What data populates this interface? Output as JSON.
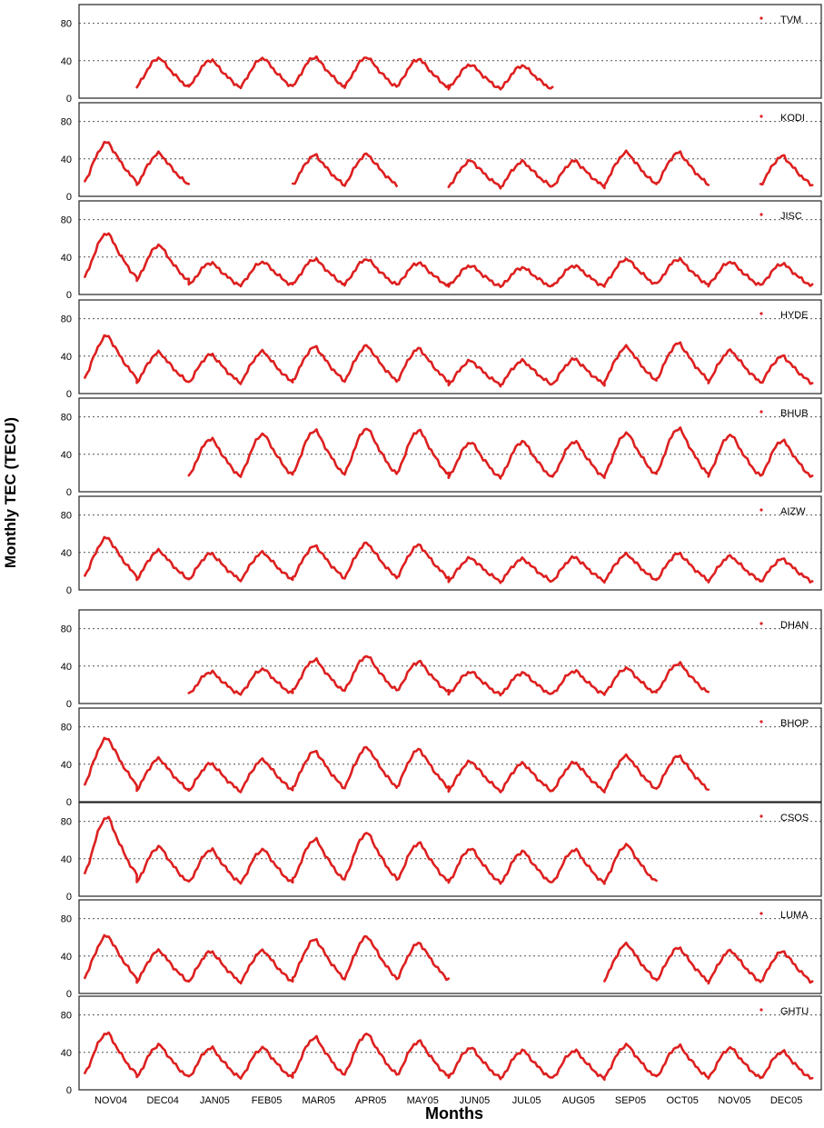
{
  "chart_data": {
    "type": "line",
    "ylabel": "Monthly TEC (TECU)",
    "xlabel": "Months",
    "x_ticks": [
      "NOV04",
      "DEC04",
      "JAN05",
      "FEB05",
      "MAR05",
      "APR05",
      "MAY05",
      "JUN05",
      "JUL05",
      "AUG05",
      "SEP05",
      "OCT05",
      "NOV05",
      "DEC05"
    ],
    "y_ticks": [
      0,
      40,
      80
    ],
    "ylim": [
      0,
      100
    ],
    "grid": "dotted horizontal at 40 and 80",
    "series_color": "#dd1f1f",
    "panels": [
      {
        "station": "TVM",
        "peaks": [
          null,
          43,
          41,
          43,
          44,
          44,
          42,
          36,
          35,
          null,
          null,
          null,
          null,
          null
        ]
      },
      {
        "station": "KODI",
        "peaks": [
          58,
          46,
          null,
          null,
          44,
          45,
          null,
          38,
          37,
          38,
          47,
          47,
          null,
          43
        ]
      },
      {
        "station": "JISC",
        "peaks": [
          66,
          53,
          34,
          35,
          38,
          38,
          34,
          31,
          29,
          31,
          38,
          38,
          35,
          33
        ]
      },
      {
        "station": "HYDE",
        "peaks": [
          62,
          44,
          42,
          45,
          50,
          51,
          48,
          35,
          35,
          37,
          50,
          54,
          46,
          40
        ]
      },
      {
        "station": "BHUB",
        "peaks": [
          null,
          null,
          57,
          62,
          66,
          68,
          66,
          53,
          54,
          54,
          63,
          68,
          61,
          55
        ]
      },
      {
        "station": "AIZW",
        "peaks": [
          56,
          42,
          39,
          40,
          47,
          50,
          48,
          34,
          33,
          35,
          38,
          39,
          36,
          33
        ]
      },
      {
        "station": "DHAN",
        "peaks": [
          null,
          null,
          34,
          37,
          47,
          51,
          45,
          34,
          33,
          35,
          38,
          43,
          null,
          null
        ]
      },
      {
        "station": "BHOP",
        "peaks": [
          68,
          46,
          41,
          45,
          54,
          58,
          56,
          43,
          41,
          42,
          49,
          49,
          null,
          null
        ]
      },
      {
        "station": "CSOS",
        "peaks": [
          85,
          53,
          50,
          50,
          61,
          68,
          57,
          51,
          48,
          50,
          55,
          null,
          null,
          null
        ]
      },
      {
        "station": "LUMA",
        "peaks": [
          62,
          46,
          45,
          46,
          58,
          61,
          54,
          null,
          null,
          null,
          53,
          49,
          46,
          45
        ]
      },
      {
        "station": "GHTU",
        "peaks": [
          61,
          48,
          45,
          45,
          56,
          60,
          52,
          45,
          42,
          42,
          48,
          47,
          45,
          41
        ]
      }
    ]
  }
}
